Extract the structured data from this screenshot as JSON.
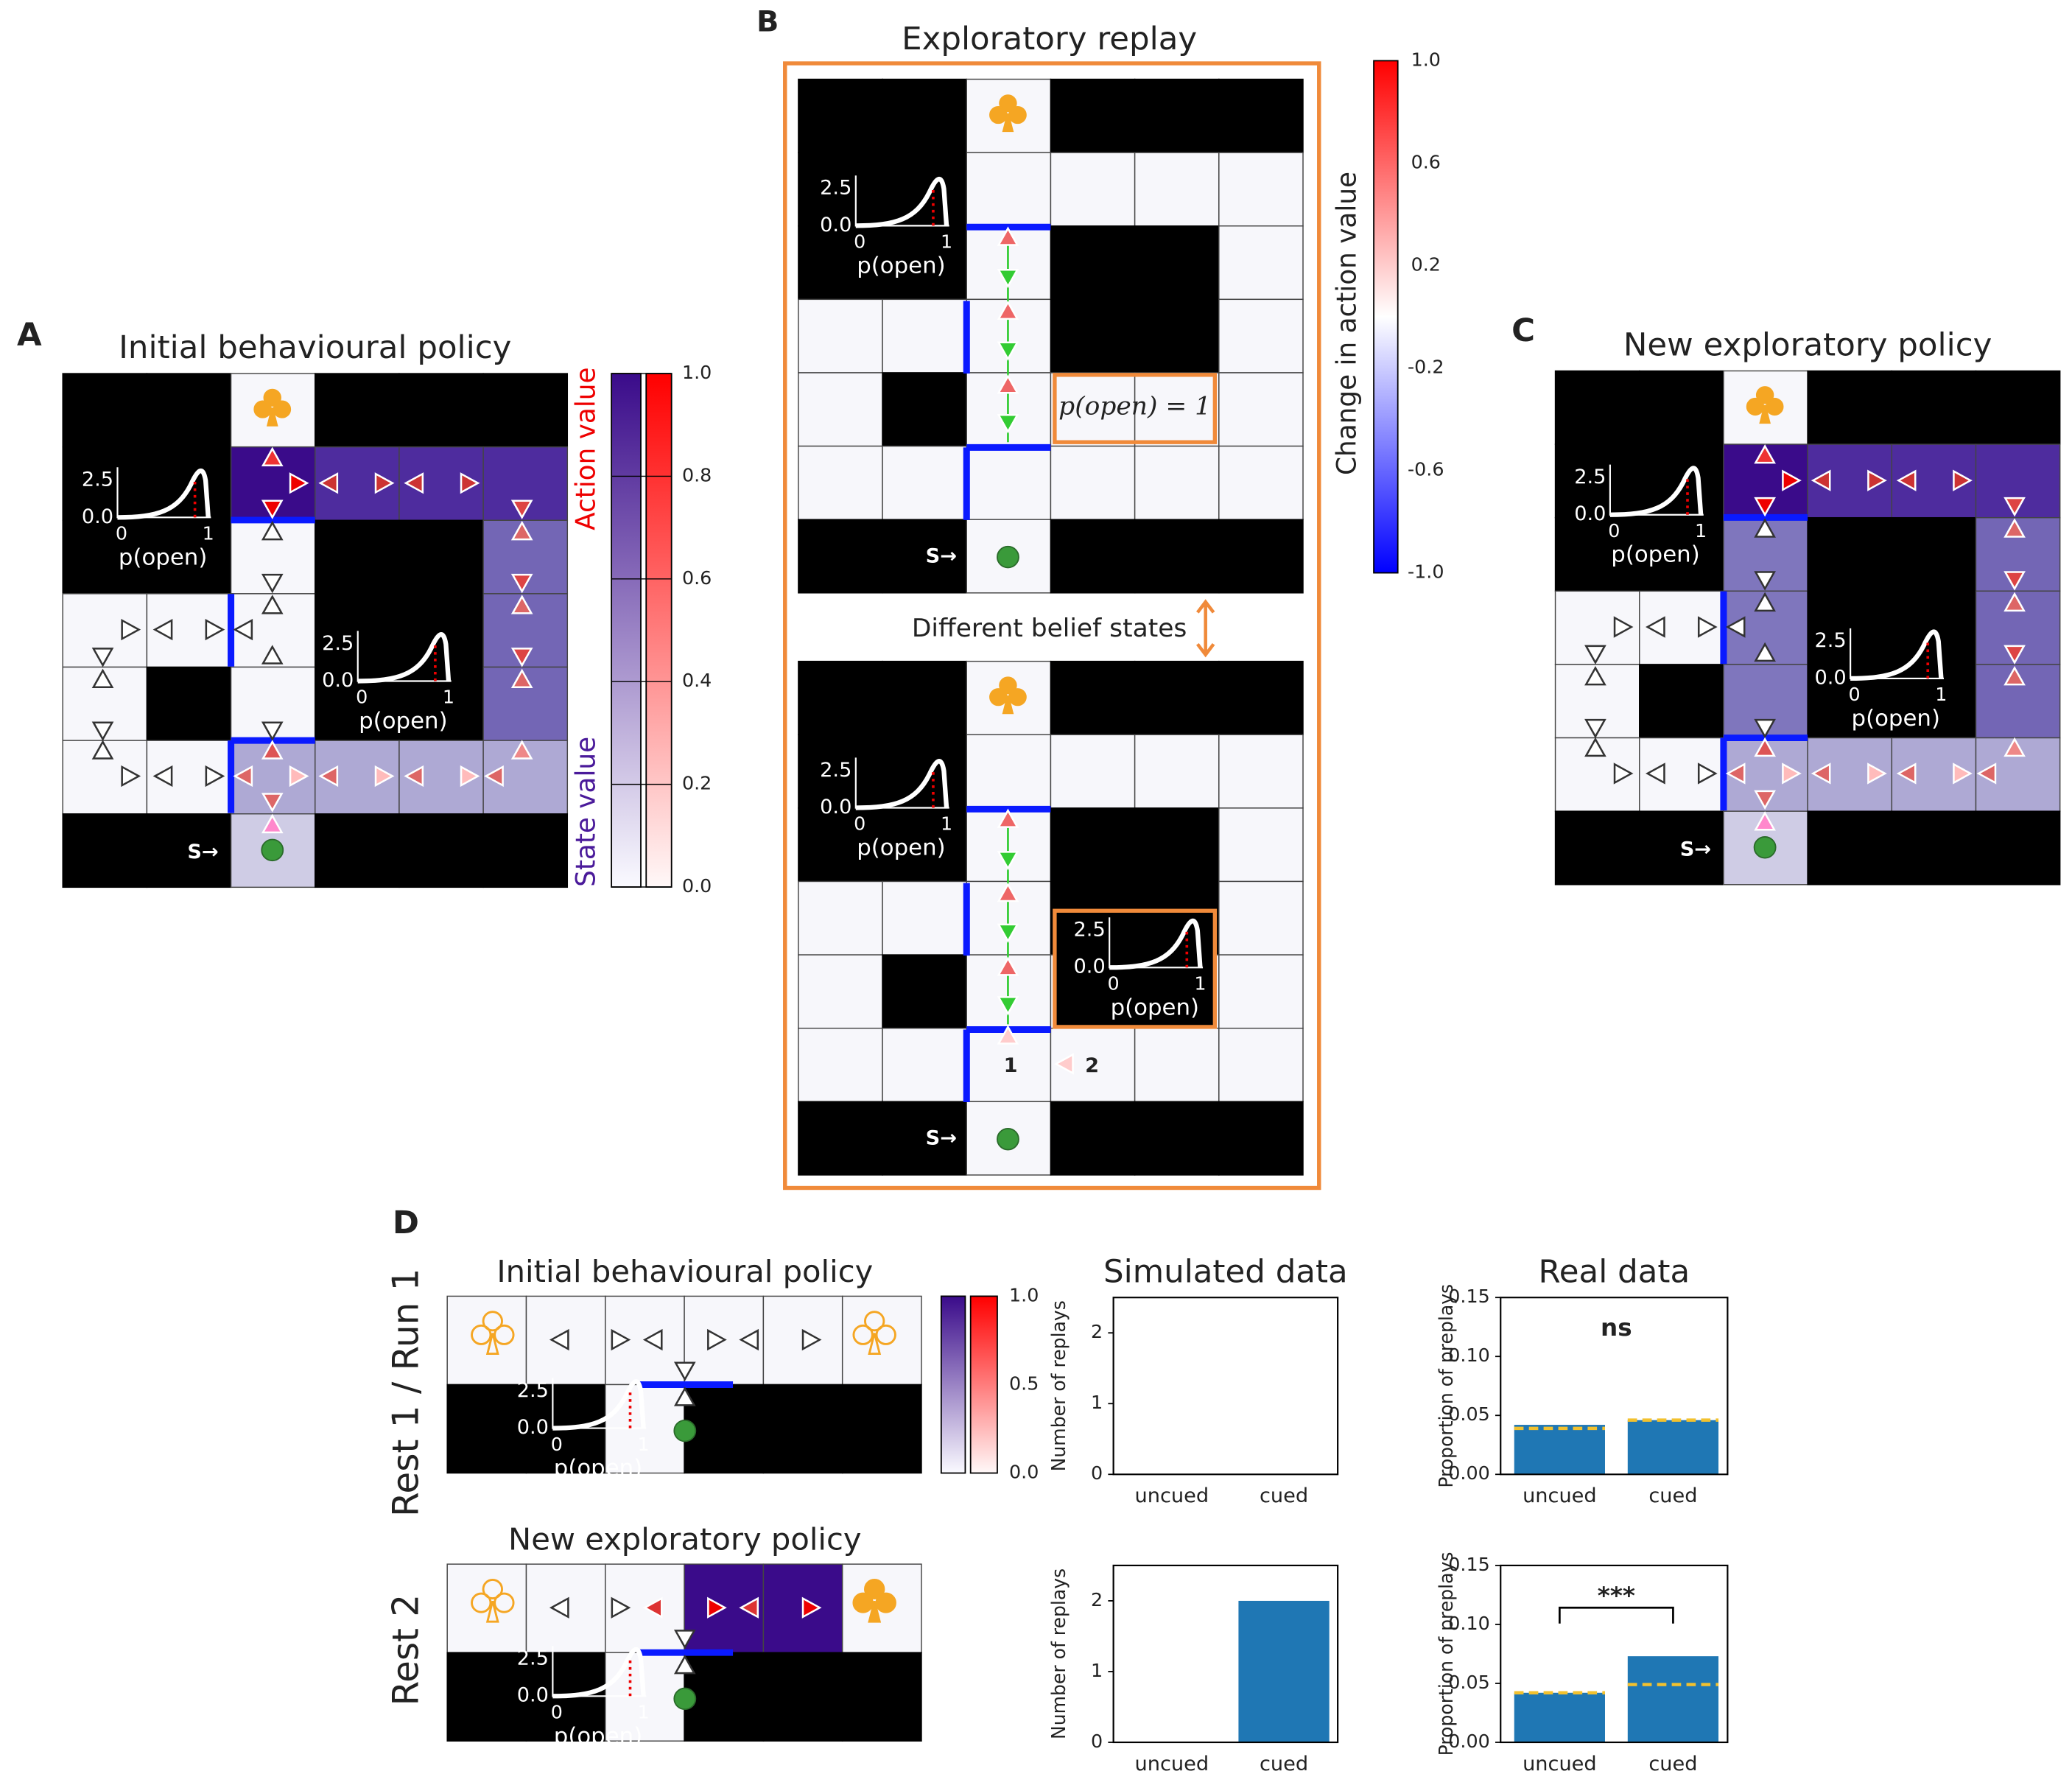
{
  "panels": {
    "A": {
      "letter": "A",
      "title": "Initial behavioural policy",
      "action_label": "Action value",
      "state_label": "State value",
      "colorbar_ticks": [
        "1.0",
        "0.8",
        "0.6",
        "0.4",
        "0.2",
        "0.0"
      ]
    },
    "B": {
      "letter": "B",
      "title": "Exploratory replay",
      "middle_label": "Different belief states",
      "box_label": "p(open) = 1",
      "step_labels": [
        "1",
        "2"
      ],
      "colorbar_label": "Change in action value",
      "colorbar_ticks": [
        "1.0",
        "0.6",
        "0.2",
        "-0.2",
        "-0.6",
        "-1.0"
      ]
    },
    "C": {
      "letter": "C",
      "title": "New exploratory policy"
    },
    "D": {
      "letter": "D",
      "row_labels": [
        "Rest 1 / Run 1",
        "Rest 2"
      ],
      "titles": [
        "Initial behavioural policy",
        "New exploratory policy"
      ],
      "colorbar_ticks": [
        "1.0",
        "0.5",
        "0.0"
      ]
    }
  },
  "inset": {
    "ymax": "2.5",
    "ymin": "0.0",
    "xmin": "0",
    "xmax": "1",
    "xlabel": "p(open)"
  },
  "start_label": "S→",
  "chart_data": [
    {
      "type": "bar",
      "title": "Simulated data",
      "ylabel": "Number of replays",
      "categories": [
        "uncued",
        "cued"
      ],
      "values": [
        0,
        0
      ],
      "ylim": [
        0,
        2.5
      ],
      "yticks": [
        0,
        1,
        2
      ],
      "color": "#1f77b4"
    },
    {
      "type": "bar",
      "title": "Real data",
      "ylabel": "Proportion of preplays",
      "categories": [
        "uncued",
        "cued"
      ],
      "values": [
        0.042,
        0.046
      ],
      "chance_values": [
        0.039,
        0.046
      ],
      "chance_color": "#f2c12e",
      "ylim": [
        0,
        0.15
      ],
      "yticks": [
        {
          "value": 0,
          "label": "0.00"
        },
        {
          "value": 0.05,
          "label": "0.05"
        },
        {
          "value": 0.1,
          "label": "0.10"
        },
        {
          "value": 0.15,
          "label": "0.15"
        }
      ],
      "color": "#1f77b4",
      "annotation": "ns"
    },
    {
      "type": "bar",
      "ylabel": "Number of replays",
      "categories": [
        "uncued",
        "cued"
      ],
      "values": [
        0,
        2
      ],
      "ylim": [
        0,
        2.5
      ],
      "yticks": [
        0,
        1,
        2
      ],
      "color": "#1f77b4"
    },
    {
      "type": "bar",
      "ylabel": "Proportion of preplays",
      "categories": [
        "uncued",
        "cued"
      ],
      "values": [
        0.042,
        0.073
      ],
      "chance_values": [
        0.042,
        0.049
      ],
      "chance_color": "#f2c12e",
      "ylim": [
        0,
        0.15
      ],
      "yticks": [
        {
          "value": 0,
          "label": "0.00"
        },
        {
          "value": 0.05,
          "label": "0.05"
        },
        {
          "value": 0.1,
          "label": "0.10"
        },
        {
          "value": 0.15,
          "label": "0.15"
        }
      ],
      "color": "#1f77b4",
      "annotation": "***",
      "bracket": true
    }
  ]
}
